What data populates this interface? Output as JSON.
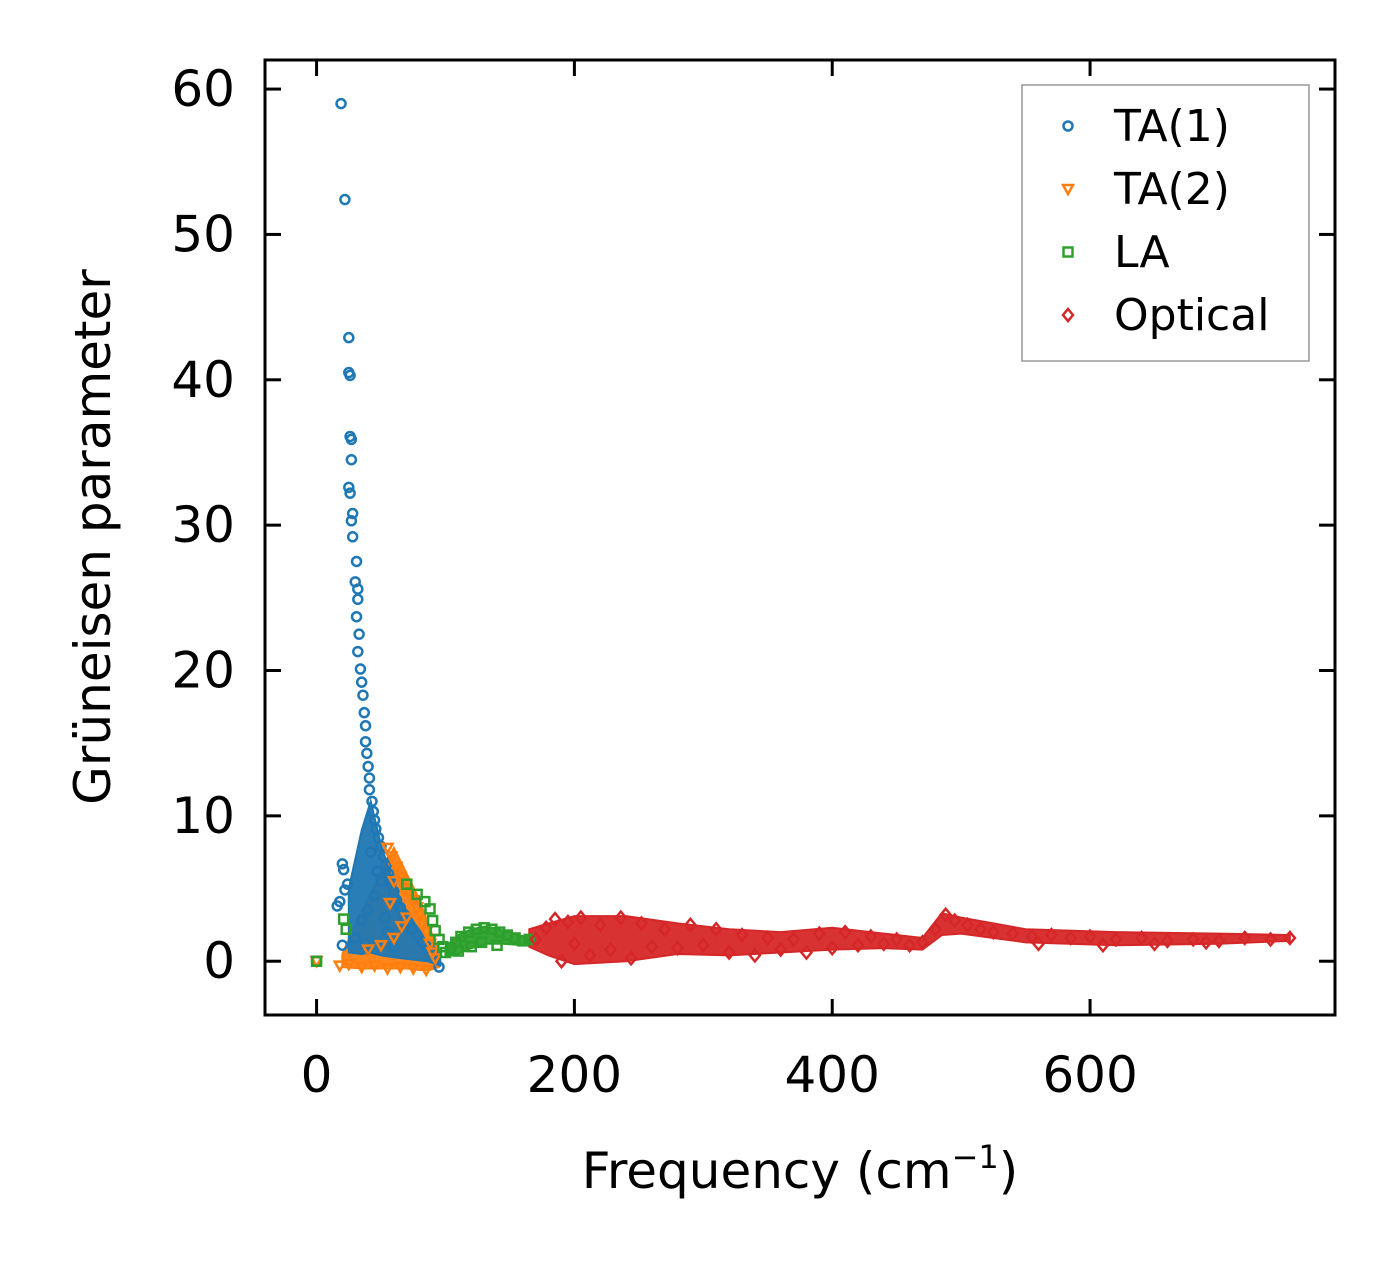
{
  "chart_data": {
    "type": "scatter",
    "title": "",
    "xlabel": "Frequency (cm",
    "xlabel_sup": "−1",
    "xlabel_end": ")",
    "ylabel": "Grüneisen parameter",
    "xlim": [
      -40,
      790
    ],
    "ylim": [
      -3.7,
      62
    ],
    "xticks": [
      0,
      200,
      400,
      600
    ],
    "yticks": [
      0,
      10,
      20,
      30,
      40,
      50,
      60
    ],
    "grid": false,
    "legend_position": "top-right",
    "series": [
      {
        "name": "TA(1)",
        "marker": "circle",
        "color": "#1f77b4",
        "points": [
          [
            19,
            59.0
          ],
          [
            22,
            52.4
          ],
          [
            25,
            42.9
          ],
          [
            25,
            40.5
          ],
          [
            26,
            40.3
          ],
          [
            26,
            36.1
          ],
          [
            27,
            35.9
          ],
          [
            27,
            34.5
          ],
          [
            25,
            32.6
          ],
          [
            26,
            32.2
          ],
          [
            28,
            30.8
          ],
          [
            27,
            30.3
          ],
          [
            28,
            29.2
          ],
          [
            31,
            27.5
          ],
          [
            30,
            26.1
          ],
          [
            32,
            25.6
          ],
          [
            32,
            24.9
          ],
          [
            31,
            23.7
          ],
          [
            33,
            22.5
          ],
          [
            32,
            21.3
          ],
          [
            34,
            20.1
          ],
          [
            35,
            19.2
          ],
          [
            36,
            18.3
          ],
          [
            37,
            17.1
          ],
          [
            38,
            16.2
          ],
          [
            38,
            15.1
          ],
          [
            39,
            14.3
          ],
          [
            40,
            13.4
          ],
          [
            41,
            12.6
          ],
          [
            41,
            11.8
          ],
          [
            43,
            11.0
          ],
          [
            44,
            10.3
          ],
          [
            45,
            9.7
          ],
          [
            46,
            9.1
          ],
          [
            48,
            8.5
          ],
          [
            50,
            7.9
          ],
          [
            52,
            7.2
          ],
          [
            54,
            6.6
          ],
          [
            56,
            6.0
          ],
          [
            58,
            5.4
          ],
          [
            60,
            4.8
          ],
          [
            62,
            4.2
          ],
          [
            65,
            3.7
          ],
          [
            68,
            3.2
          ],
          [
            71,
            2.7
          ],
          [
            74,
            2.2
          ],
          [
            78,
            1.8
          ],
          [
            82,
            1.3
          ],
          [
            86,
            0.9
          ],
          [
            90,
            0.5
          ],
          [
            95,
            -0.4
          ],
          [
            20,
            6.7
          ],
          [
            21,
            6.3
          ],
          [
            18,
            4.1
          ],
          [
            16,
            3.8
          ],
          [
            22,
            4.9
          ],
          [
            24,
            5.3
          ],
          [
            20,
            1.1
          ],
          [
            0,
            0.0
          ],
          [
            30,
            1.6
          ],
          [
            35,
            2.8
          ],
          [
            40,
            3.5
          ],
          [
            45,
            4.5
          ],
          [
            50,
            5.5
          ],
          [
            55,
            2.0
          ],
          [
            60,
            1.0
          ],
          [
            42,
            7.5
          ],
          [
            47,
            6.2
          ],
          [
            53,
            3.0
          ],
          [
            38,
            1.2
          ]
        ]
      },
      {
        "name": "TA(2)",
        "marker": "triangle_down",
        "color": "#ff7f0e",
        "points": [
          [
            0,
            0.0
          ],
          [
            18,
            -0.3
          ],
          [
            25,
            -0.2
          ],
          [
            35,
            -0.4
          ],
          [
            45,
            -0.3
          ],
          [
            55,
            -0.5
          ],
          [
            65,
            -0.4
          ],
          [
            75,
            -0.5
          ],
          [
            85,
            -0.6
          ],
          [
            60,
            5.5
          ],
          [
            62,
            6.5
          ],
          [
            58,
            7.2
          ],
          [
            55,
            7.8
          ],
          [
            65,
            5.8
          ],
          [
            68,
            5.0
          ],
          [
            72,
            4.6
          ],
          [
            75,
            4.2
          ],
          [
            78,
            3.7
          ],
          [
            80,
            3.2
          ],
          [
            82,
            2.6
          ],
          [
            85,
            2.0
          ],
          [
            70,
            3.0
          ],
          [
            66,
            2.4
          ],
          [
            60,
            1.6
          ],
          [
            50,
            1.1
          ],
          [
            40,
            0.8
          ],
          [
            88,
            1.2
          ],
          [
            90,
            0.6
          ],
          [
            92,
            0.2
          ],
          [
            57,
            4.0
          ]
        ]
      },
      {
        "name": "LA",
        "marker": "square",
        "color": "#2ca02c",
        "points": [
          [
            0,
            0.0
          ],
          [
            21,
            2.9
          ],
          [
            23,
            2.2
          ],
          [
            70,
            5.3
          ],
          [
            78,
            4.6
          ],
          [
            84,
            4.1
          ],
          [
            88,
            3.6
          ],
          [
            90,
            2.8
          ],
          [
            92,
            2.1
          ],
          [
            95,
            1.5
          ],
          [
            98,
            1.0
          ],
          [
            100,
            0.6
          ],
          [
            104,
            0.9
          ],
          [
            108,
            1.3
          ],
          [
            112,
            1.7
          ],
          [
            118,
            2.0
          ],
          [
            124,
            2.2
          ],
          [
            130,
            2.3
          ],
          [
            136,
            2.2
          ],
          [
            142,
            2.0
          ],
          [
            148,
            1.8
          ],
          [
            154,
            1.6
          ],
          [
            160,
            1.4
          ],
          [
            165,
            1.5
          ],
          [
            110,
            0.7
          ],
          [
            120,
            1.0
          ],
          [
            128,
            1.3
          ],
          [
            140,
            1.1
          ]
        ]
      },
      {
        "name": "Optical",
        "marker": "diamond",
        "color": "#d62728",
        "points": [
          [
            170,
            1.5
          ],
          [
            178,
            2.3
          ],
          [
            185,
            2.9
          ],
          [
            190,
            0.0
          ],
          [
            195,
            2.7
          ],
          [
            200,
            1.2
          ],
          [
            205,
            3.0
          ],
          [
            212,
            0.4
          ],
          [
            220,
            2.5
          ],
          [
            228,
            0.8
          ],
          [
            236,
            3.0
          ],
          [
            244,
            0.2
          ],
          [
            252,
            2.6
          ],
          [
            260,
            1.0
          ],
          [
            270,
            2.2
          ],
          [
            280,
            0.9
          ],
          [
            290,
            2.5
          ],
          [
            300,
            1.1
          ],
          [
            310,
            2.2
          ],
          [
            320,
            0.6
          ],
          [
            330,
            1.8
          ],
          [
            340,
            0.4
          ],
          [
            350,
            1.6
          ],
          [
            360,
            0.8
          ],
          [
            370,
            1.5
          ],
          [
            380,
            0.6
          ],
          [
            390,
            1.9
          ],
          [
            400,
            0.9
          ],
          [
            410,
            2.0
          ],
          [
            420,
            1.1
          ],
          [
            430,
            1.7
          ],
          [
            440,
            1.2
          ],
          [
            450,
            1.5
          ],
          [
            460,
            1.1
          ],
          [
            470,
            1.3
          ],
          [
            480,
            2.2
          ],
          [
            488,
            3.2
          ],
          [
            495,
            2.8
          ],
          [
            505,
            2.5
          ],
          [
            515,
            2.2
          ],
          [
            525,
            2.0
          ],
          [
            540,
            1.9
          ],
          [
            555,
            1.7
          ],
          [
            570,
            1.8
          ],
          [
            585,
            1.6
          ],
          [
            600,
            1.7
          ],
          [
            620,
            1.5
          ],
          [
            640,
            1.6
          ],
          [
            660,
            1.4
          ],
          [
            680,
            1.5
          ],
          [
            700,
            1.4
          ],
          [
            720,
            1.6
          ],
          [
            740,
            1.5
          ],
          [
            755,
            1.6
          ],
          [
            560,
            1.2
          ],
          [
            610,
            1.1
          ],
          [
            650,
            1.2
          ],
          [
            690,
            1.3
          ]
        ]
      }
    ],
    "bands": [
      {
        "series": "Optical",
        "color": "#d62728",
        "upper": [
          [
            165,
            2.2
          ],
          [
            180,
            2.6
          ],
          [
            200,
            3.1
          ],
          [
            240,
            3.1
          ],
          [
            280,
            2.6
          ],
          [
            320,
            2.2
          ],
          [
            360,
            2.0
          ],
          [
            400,
            2.3
          ],
          [
            440,
            1.9
          ],
          [
            470,
            1.6
          ],
          [
            485,
            3.3
          ],
          [
            500,
            3.0
          ],
          [
            550,
            2.2
          ],
          [
            620,
            2.0
          ],
          [
            700,
            1.9
          ],
          [
            755,
            1.8
          ]
        ],
        "lower": [
          [
            165,
            1.0
          ],
          [
            180,
            0.4
          ],
          [
            200,
            -0.2
          ],
          [
            240,
            0.0
          ],
          [
            280,
            0.5
          ],
          [
            320,
            0.4
          ],
          [
            360,
            0.6
          ],
          [
            400,
            0.8
          ],
          [
            440,
            0.9
          ],
          [
            470,
            0.8
          ],
          [
            485,
            1.8
          ],
          [
            500,
            1.9
          ],
          [
            550,
            1.3
          ],
          [
            620,
            1.1
          ],
          [
            700,
            1.2
          ],
          [
            755,
            1.4
          ]
        ]
      },
      {
        "series": "LA",
        "color": "#2ca02c",
        "upper": [
          [
            100,
            1.0
          ],
          [
            110,
            1.8
          ],
          [
            120,
            2.2
          ],
          [
            132,
            2.4
          ],
          [
            145,
            2.1
          ],
          [
            160,
            1.7
          ],
          [
            168,
            1.6
          ]
        ],
        "lower": [
          [
            100,
            0.3
          ],
          [
            110,
            0.5
          ],
          [
            120,
            0.9
          ],
          [
            132,
            1.2
          ],
          [
            145,
            1.2
          ],
          [
            160,
            1.1
          ],
          [
            168,
            1.2
          ]
        ]
      },
      {
        "series": "TA(2)",
        "color": "#ff7f0e",
        "upper": [
          [
            20,
            0.5
          ],
          [
            35,
            3.5
          ],
          [
            50,
            6.0
          ],
          [
            60,
            7.8
          ],
          [
            70,
            6.0
          ],
          [
            80,
            4.2
          ],
          [
            88,
            2.2
          ],
          [
            95,
            0.8
          ]
        ],
        "lower": [
          [
            20,
            -0.4
          ],
          [
            35,
            -0.5
          ],
          [
            50,
            -0.5
          ],
          [
            60,
            -0.5
          ],
          [
            70,
            -0.5
          ],
          [
            80,
            -0.6
          ],
          [
            88,
            -0.6
          ],
          [
            95,
            -0.4
          ]
        ]
      },
      {
        "series": "TA(1)",
        "color": "#1f77b4",
        "upper": [
          [
            25,
            5.0
          ],
          [
            35,
            9.0
          ],
          [
            42,
            11.0
          ],
          [
            50,
            8.0
          ],
          [
            58,
            5.8
          ],
          [
            66,
            4.0
          ],
          [
            76,
            2.6
          ],
          [
            86,
            1.4
          ],
          [
            96,
            0.6
          ]
        ],
        "lower": [
          [
            25,
            0.6
          ],
          [
            35,
            0.5
          ],
          [
            42,
            0.6
          ],
          [
            50,
            0.4
          ],
          [
            58,
            0.3
          ],
          [
            66,
            0.2
          ],
          [
            76,
            0.1
          ],
          [
            86,
            0.0
          ],
          [
            96,
            -0.3
          ]
        ]
      }
    ]
  }
}
